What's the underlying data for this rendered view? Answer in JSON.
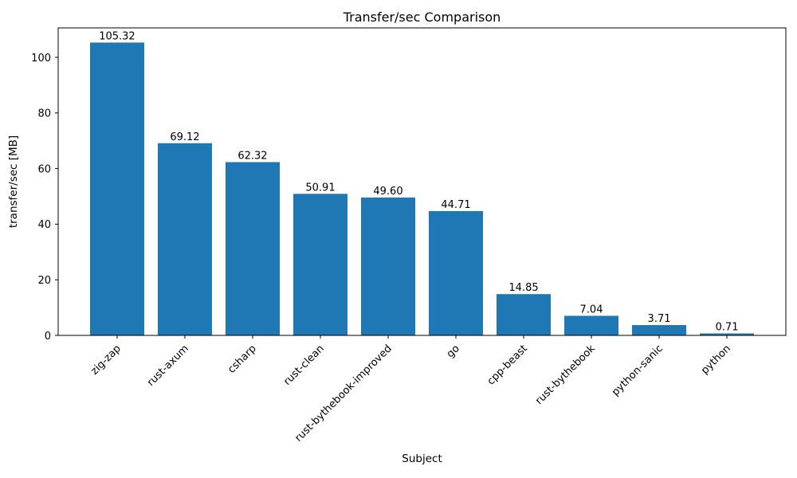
{
  "chart_data": {
    "type": "bar",
    "title": "Transfer/sec Comparison",
    "xlabel": "Subject",
    "ylabel": "transfer/sec [MB]",
    "categories": [
      "zig-zap",
      "rust-axum",
      "csharp",
      "rust-clean",
      "rust-bythebook-improved",
      "go",
      "cpp-beast",
      "rust-bythebook",
      "python-sanic",
      "python"
    ],
    "values": [
      105.32,
      69.12,
      62.32,
      50.91,
      49.6,
      44.71,
      14.85,
      7.04,
      3.71,
      0.71
    ],
    "value_labels": [
      "105.32",
      "69.12",
      "62.32",
      "50.91",
      "49.60",
      "44.71",
      "14.85",
      "7.04",
      "3.71",
      "0.71"
    ],
    "yticks": [
      0,
      20,
      40,
      60,
      80,
      100
    ],
    "ylim": [
      0,
      110.6
    ],
    "bar_width_fraction": 0.8,
    "x_tick_rotation_deg": 45,
    "grid": false,
    "legend": null,
    "colors": {
      "bar": "#1f77b4",
      "axis": "#000000",
      "text": "#000000",
      "background": "#ffffff"
    }
  }
}
